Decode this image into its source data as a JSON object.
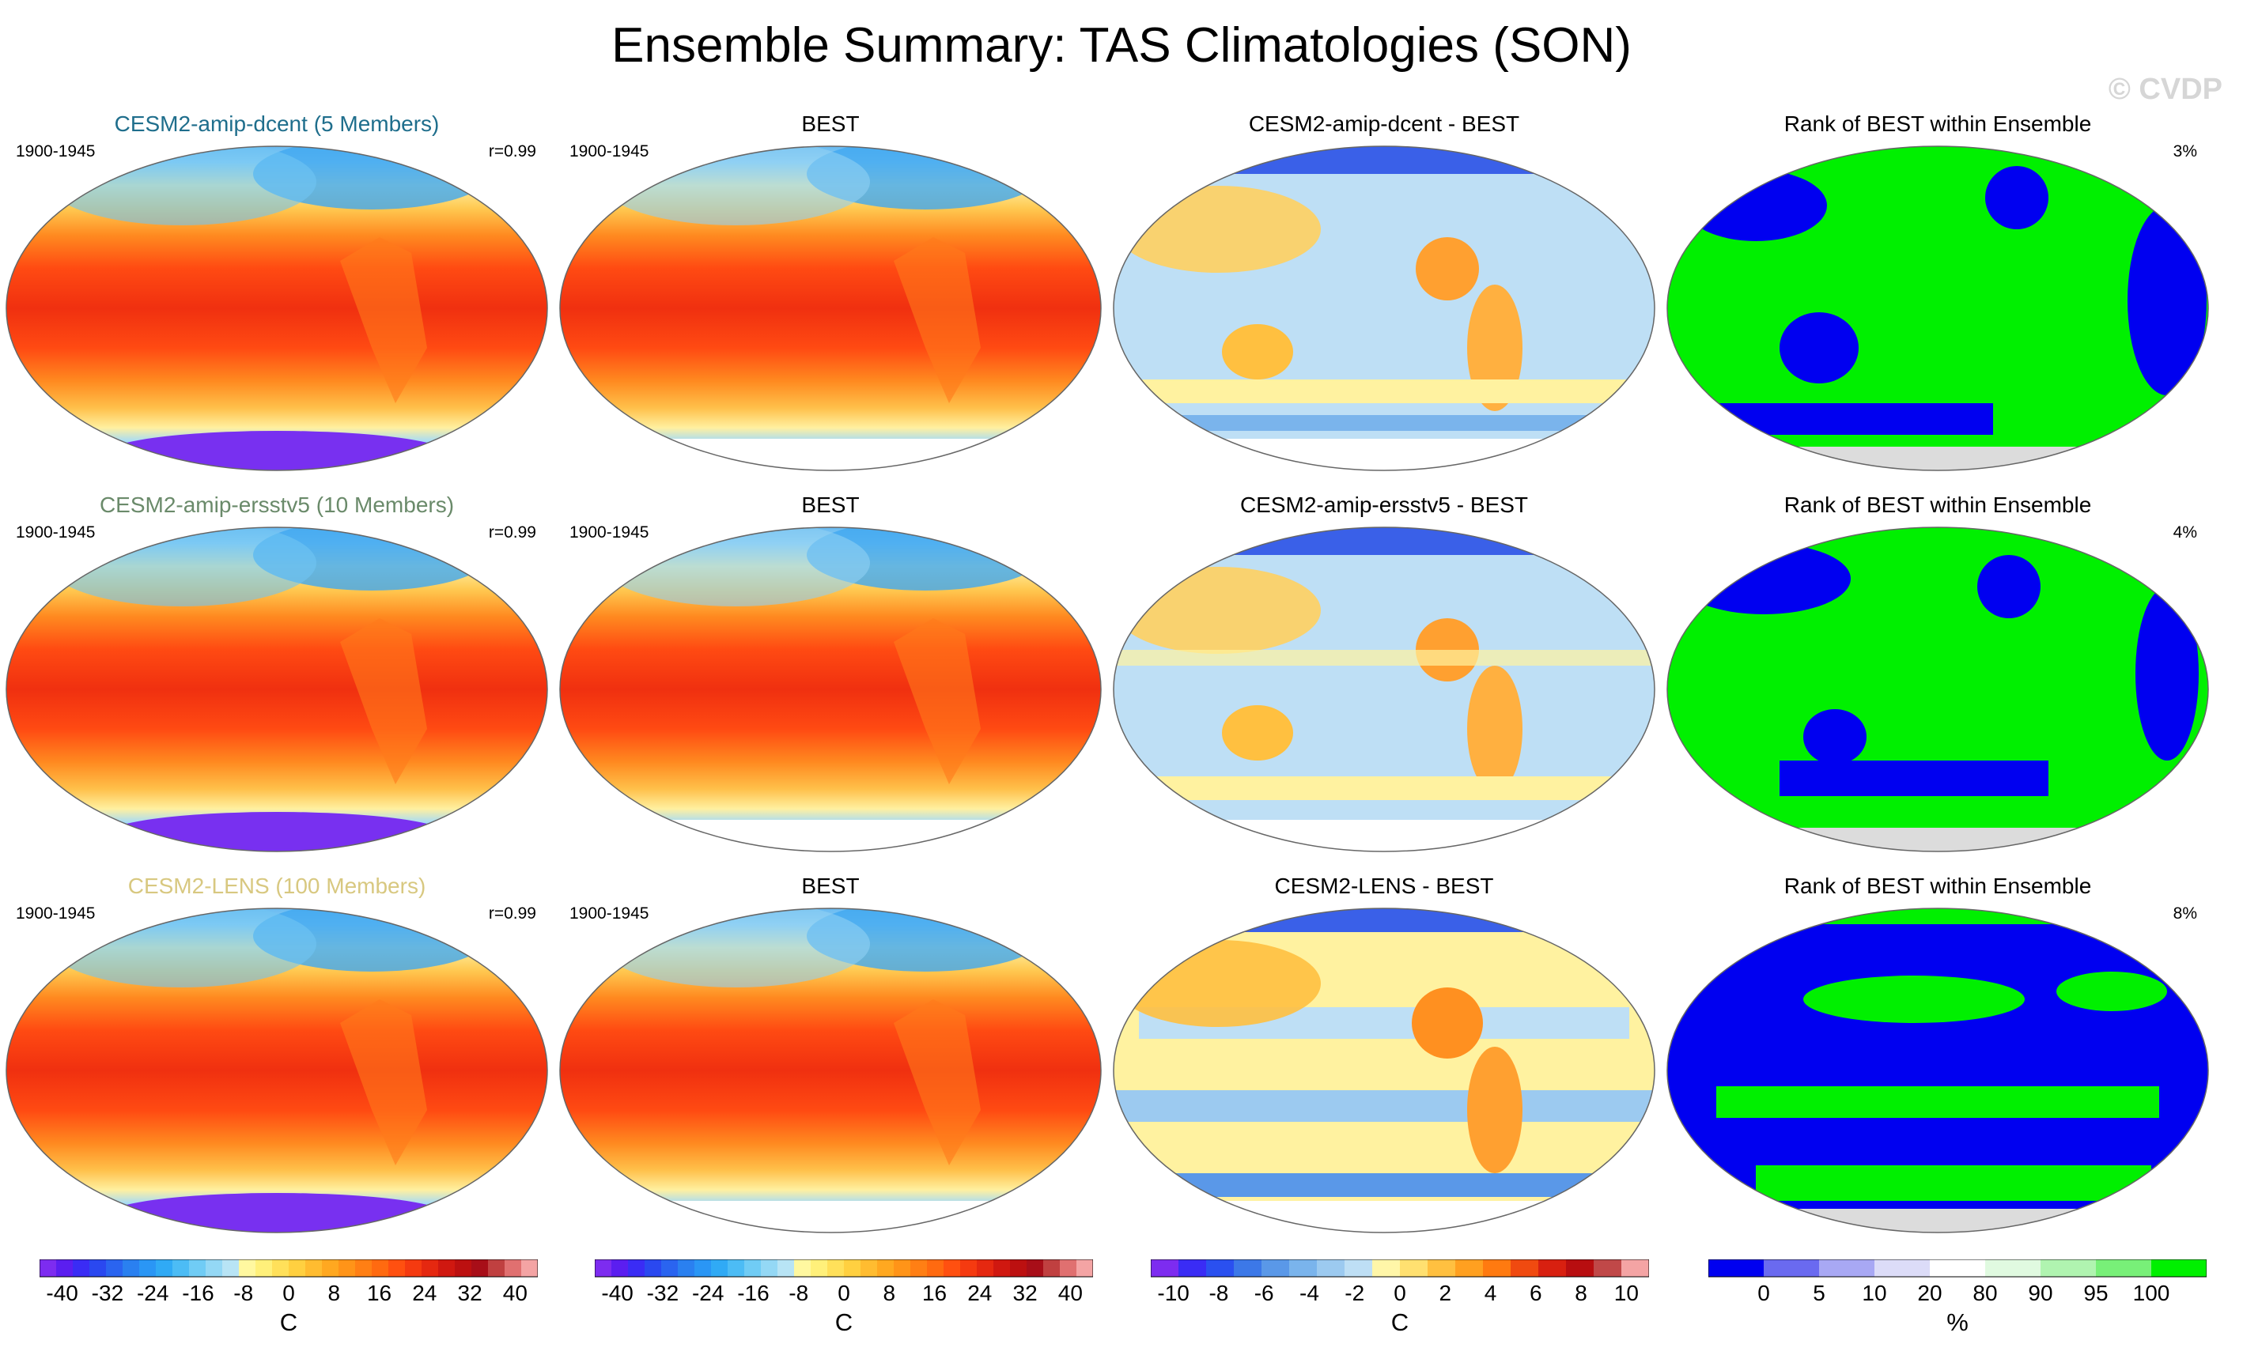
{
  "title": "Ensemble Summary: TAS Climatologies (SON)",
  "watermark": "© CVDP",
  "rows": [
    {
      "model_title": "CESM2-amip-dcent (5 Members)",
      "model_title_color": "#1f6e8c",
      "period": "1900-1945",
      "corr": "r=0.99",
      "obs_title": "BEST",
      "obs_period": "1900-1945",
      "diff_title": "CESM2-amip-dcent - BEST",
      "rank_title": "Rank of BEST within Ensemble",
      "rank_pct": "3%"
    },
    {
      "model_title": "CESM2-amip-ersstv5 (10 Members)",
      "model_title_color": "#6a8a6a",
      "period": "1900-1945",
      "corr": "r=0.99",
      "obs_title": "BEST",
      "obs_period": "1900-1945",
      "diff_title": "CESM2-amip-ersstv5 - BEST",
      "rank_title": "Rank of BEST within Ensemble",
      "rank_pct": "4%"
    },
    {
      "model_title": "CESM2-LENS (100 Members)",
      "model_title_color": "#d8c880",
      "period": "1900-1945",
      "corr": "r=0.99",
      "obs_title": "BEST",
      "obs_period": "1900-1945",
      "diff_title": "CESM2-LENS - BEST",
      "rank_title": "Rank of BEST within Ensemble",
      "rank_pct": "8%"
    }
  ],
  "colorbars": [
    {
      "labels": [
        "-40",
        "-32",
        "-24",
        "-16",
        "-8",
        "0",
        "8",
        "16",
        "24",
        "32",
        "40"
      ],
      "unit": "C",
      "colors": [
        "#7d2cf0",
        "#5b1ef0",
        "#3a2cf5",
        "#2a48f0",
        "#2a64f0",
        "#2a80f0",
        "#2a96f5",
        "#30aaf5",
        "#4cbcf5",
        "#70ccf5",
        "#94d8f5",
        "#b8e4f5",
        "#fff8a0",
        "#fff07a",
        "#ffe05a",
        "#ffd040",
        "#ffbc30",
        "#ffa820",
        "#ff9418",
        "#ff7f14",
        "#ff6a10",
        "#ff5010",
        "#f53a10",
        "#e52810",
        "#d01810",
        "#bc1010",
        "#a80e18",
        "#c04040",
        "#e07070",
        "#f4a4a4"
      ]
    },
    {
      "labels": [
        "-40",
        "-32",
        "-24",
        "-16",
        "-8",
        "0",
        "8",
        "16",
        "24",
        "32",
        "40"
      ],
      "unit": "C",
      "colors": [
        "#7d2cf0",
        "#5b1ef0",
        "#3a2cf5",
        "#2a48f0",
        "#2a64f0",
        "#2a80f0",
        "#2a96f5",
        "#30aaf5",
        "#4cbcf5",
        "#70ccf5",
        "#94d8f5",
        "#b8e4f5",
        "#fff8a0",
        "#fff07a",
        "#ffe05a",
        "#ffd040",
        "#ffbc30",
        "#ffa820",
        "#ff9418",
        "#ff7f14",
        "#ff6a10",
        "#ff5010",
        "#f53a10",
        "#e52810",
        "#d01810",
        "#bc1010",
        "#a80e18",
        "#c04040",
        "#e07070",
        "#f4a4a4"
      ]
    },
    {
      "labels": [
        "-10",
        "-8",
        "-6",
        "-4",
        "-2",
        "0",
        "2",
        "4",
        "6",
        "8",
        "10"
      ],
      "unit": "C",
      "colors": [
        "#7d2cf0",
        "#3a2cf5",
        "#2a50f0",
        "#3c78e8",
        "#5a98e8",
        "#7ab4ec",
        "#9ccaf0",
        "#bedff5",
        "#fff6a8",
        "#ffe070",
        "#ffc040",
        "#ffa020",
        "#ff7a10",
        "#f04a10",
        "#d82010",
        "#b80e10",
        "#c04848",
        "#f4a4a4"
      ]
    },
    {
      "labels": [
        "0",
        "5",
        "10",
        "20",
        "80",
        "90",
        "95",
        "100"
      ],
      "unit": "%",
      "colors": [
        "#0000f0",
        "#6a6af0",
        "#a8a8f4",
        "#dcdcf8",
        "#ffffff",
        "#e0fae0",
        "#b0f4b0",
        "#78f078",
        "#00f000"
      ]
    }
  ],
  "chart_data": [
    {
      "type": "heatmap",
      "title": "CESM2-amip-dcent (5 Members)",
      "subtitle_left": "1900-1945",
      "subtitle_right": "r=0.99",
      "field": "TAS SON climatology",
      "units": "C",
      "range": [
        -40,
        40
      ]
    },
    {
      "type": "heatmap",
      "title": "BEST",
      "subtitle_left": "1900-1945",
      "field": "TAS SON climatology",
      "units": "C",
      "range": [
        -40,
        40
      ]
    },
    {
      "type": "heatmap",
      "title": "CESM2-amip-dcent - BEST",
      "field": "TAS difference",
      "units": "C",
      "range": [
        -10,
        10
      ]
    },
    {
      "type": "heatmap",
      "title": "Rank of BEST within Ensemble",
      "subtitle_right": "3%",
      "units": "%",
      "range": [
        0,
        100
      ]
    },
    {
      "type": "heatmap",
      "title": "CESM2-amip-ersstv5 (10 Members)",
      "subtitle_left": "1900-1945",
      "subtitle_right": "r=0.99",
      "units": "C",
      "range": [
        -40,
        40
      ]
    },
    {
      "type": "heatmap",
      "title": "BEST",
      "subtitle_left": "1900-1945",
      "units": "C",
      "range": [
        -40,
        40
      ]
    },
    {
      "type": "heatmap",
      "title": "CESM2-amip-ersstv5 - BEST",
      "units": "C",
      "range": [
        -10,
        10
      ]
    },
    {
      "type": "heatmap",
      "title": "Rank of BEST within Ensemble",
      "subtitle_right": "4%",
      "units": "%",
      "range": [
        0,
        100
      ]
    },
    {
      "type": "heatmap",
      "title": "CESM2-LENS (100 Members)",
      "subtitle_left": "1900-1945",
      "subtitle_right": "r=0.99",
      "units": "C",
      "range": [
        -40,
        40
      ]
    },
    {
      "type": "heatmap",
      "title": "BEST",
      "subtitle_left": "1900-1945",
      "units": "C",
      "range": [
        -40,
        40
      ]
    },
    {
      "type": "heatmap",
      "title": "CESM2-LENS - BEST",
      "units": "C",
      "range": [
        -10,
        10
      ]
    },
    {
      "type": "heatmap",
      "title": "Rank of BEST within Ensemble",
      "subtitle_right": "8%",
      "units": "%",
      "range": [
        0,
        100
      ]
    }
  ]
}
